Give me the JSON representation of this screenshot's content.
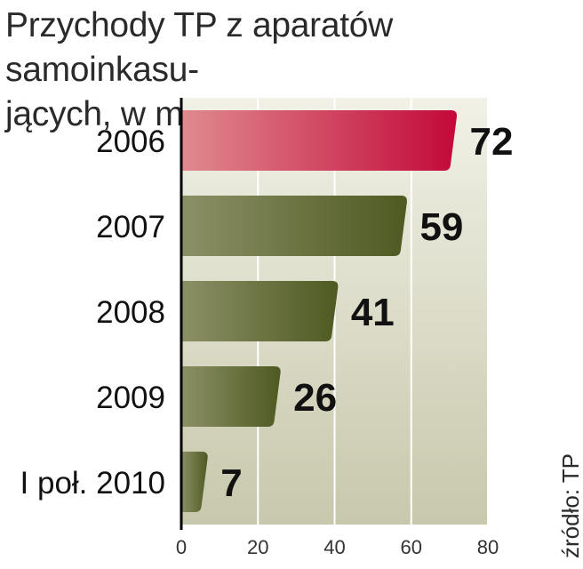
{
  "title_lines": [
    "Przychody TP z aparatów samoinkasu-",
    "jących, w mln zł"
  ],
  "source": "źródło: TP",
  "colors": {
    "highlight_bar_start": "#e08a8e",
    "highlight_bar_end": "#c3093a",
    "highlight_value": "#c3093a",
    "bar_start": "#8c9066",
    "bar_end": "#4e5a22",
    "band_light": "#f1f1e7",
    "band_dark": "#c8c8ac"
  },
  "chart_data": {
    "type": "bar",
    "orientation": "horizontal",
    "title": "Przychody TP z aparatów samoinkasujących, w mln zł",
    "categories": [
      "2006",
      "2007",
      "2008",
      "2009",
      "I poł. 2010"
    ],
    "values": [
      72,
      59,
      41,
      26,
      7
    ],
    "value_labels": [
      "72",
      "59",
      "41",
      "26",
      "7"
    ],
    "highlighted_index": 0,
    "xlim": [
      0,
      80
    ],
    "xticks": [
      "0",
      "20",
      "40",
      "60",
      "80"
    ],
    "grid": true
  }
}
